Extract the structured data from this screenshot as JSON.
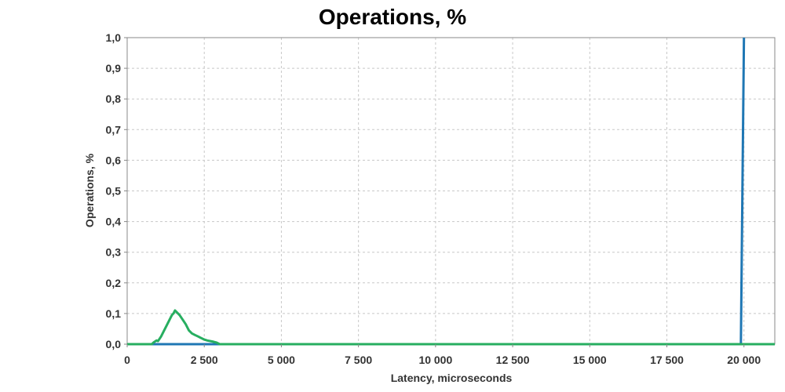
{
  "chart_data": {
    "type": "line",
    "title": "Operations, %",
    "xlabel": "Latency, microseconds",
    "ylabel": "Operations, %",
    "xlim": [
      0,
      21000
    ],
    "ylim": [
      0,
      1.0
    ],
    "x_ticks": [
      0,
      2500,
      5000,
      7500,
      10000,
      12500,
      15000,
      17500,
      20000
    ],
    "x_tick_labels": [
      "0",
      "2 500",
      "5 000",
      "7 500",
      "10 000",
      "12 500",
      "15 000",
      "17 500",
      "20 000"
    ],
    "y_ticks": [
      0,
      0.1,
      0.2,
      0.3,
      0.4,
      0.5,
      0.6,
      0.7,
      0.8,
      0.9,
      1.0
    ],
    "y_tick_labels": [
      "0,0",
      "0,1",
      "0,2",
      "0,3",
      "0,4",
      "0,5",
      "0,6",
      "0,7",
      "0,8",
      "0,9",
      "1,0"
    ],
    "grid": true,
    "legend": "none",
    "series": [
      {
        "color": "#1f77b4",
        "x": [
          0,
          19900,
          20000
        ],
        "y": [
          0,
          0,
          1.0
        ]
      },
      {
        "color": "#27ae60",
        "x": [
          0,
          800,
          850,
          950,
          1000,
          1100,
          1200,
          1300,
          1400,
          1450,
          1500,
          1550,
          1600,
          1700,
          1800,
          1900,
          2000,
          2100,
          2200,
          2300,
          2400,
          2500,
          2600,
          2700,
          2800,
          2900,
          3000,
          21000
        ],
        "y": [
          0,
          0,
          0.005,
          0.012,
          0.01,
          0.025,
          0.045,
          0.065,
          0.085,
          0.095,
          0.1,
          0.11,
          0.105,
          0.095,
          0.08,
          0.065,
          0.045,
          0.035,
          0.03,
          0.025,
          0.02,
          0.015,
          0.012,
          0.01,
          0.008,
          0.005,
          0.0,
          0.0
        ]
      }
    ]
  }
}
